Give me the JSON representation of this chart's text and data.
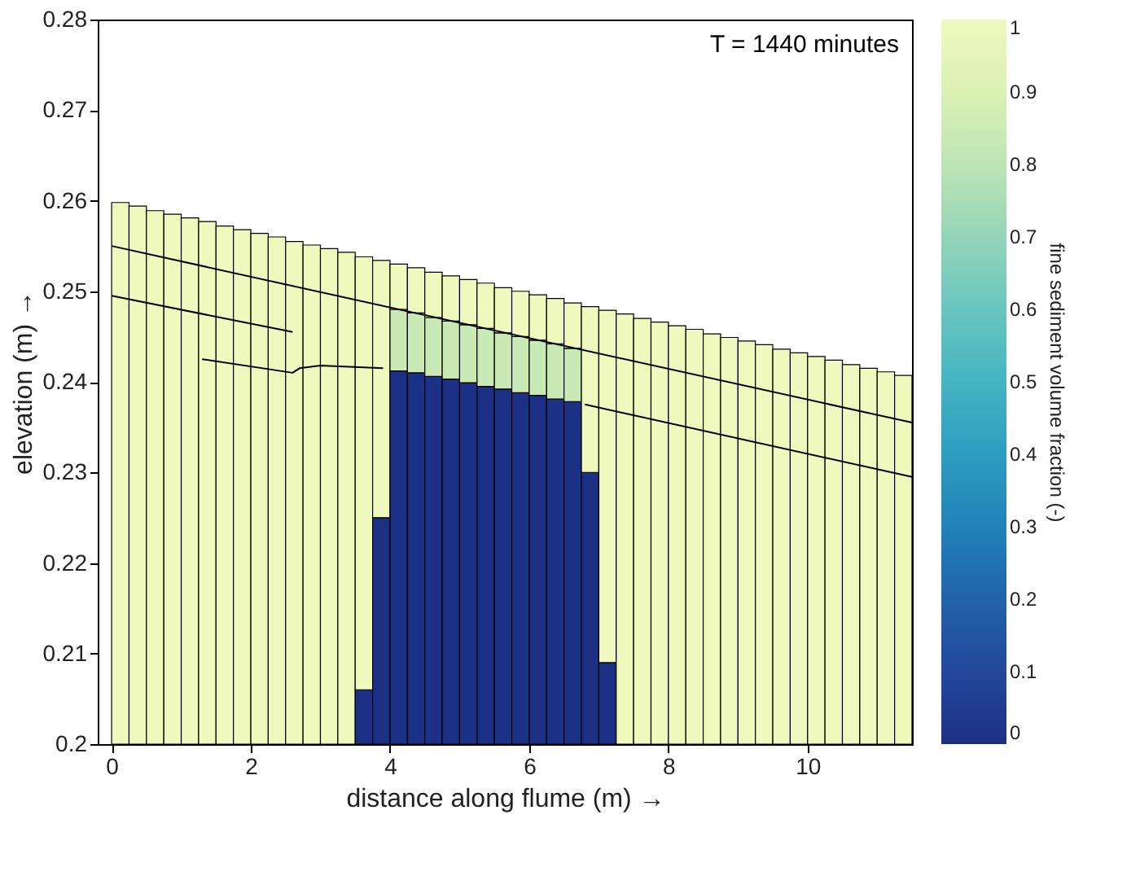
{
  "chart_data": {
    "type": "bar",
    "xlabel": "distance along flume (m) →",
    "ylabel": "elevation (m) →",
    "clabel": "fine sediment volume fraction (-)",
    "annotations": [
      "T = 1440 minutes"
    ],
    "x": [
      0.125,
      0.375,
      0.625,
      0.875,
      1.125,
      1.375,
      1.625,
      1.875,
      2.125,
      2.375,
      2.625,
      2.875,
      3.125,
      3.375,
      3.625,
      3.875,
      4.125,
      4.375,
      4.625,
      4.875,
      5.125,
      5.375,
      5.625,
      5.875,
      6.125,
      6.375,
      6.625,
      6.875,
      7.125,
      7.375,
      7.625,
      7.875,
      8.125,
      8.375,
      8.625,
      8.875,
      9.125,
      9.375,
      9.625,
      9.875,
      10.125,
      10.375,
      10.625,
      10.875,
      11.125,
      11.375
    ],
    "series": [
      {
        "base": [
          null,
          null,
          null,
          null,
          null,
          null,
          null,
          null,
          null,
          null,
          null,
          null,
          null,
          null,
          0.2,
          0.2,
          0.2,
          0.2,
          0.2,
          0.2,
          0.2,
          0.2,
          0.2,
          0.2,
          0.2,
          0.2,
          0.2,
          0.2,
          0.2,
          null,
          null,
          null,
          null,
          null,
          null,
          null,
          null,
          null,
          null,
          null,
          null,
          null,
          null,
          null,
          null,
          null
        ],
        "values": [
          null,
          null,
          null,
          null,
          null,
          null,
          null,
          null,
          null,
          null,
          null,
          null,
          null,
          null,
          0.006,
          0.025,
          0.0412,
          0.041,
          0.0406,
          0.0403,
          0.0399,
          0.0395,
          0.0392,
          0.0388,
          0.0385,
          0.0381,
          0.0378,
          0.03,
          0.009,
          null,
          null,
          null,
          null,
          null,
          null,
          null,
          null,
          null,
          null,
          null,
          null,
          null,
          null,
          null,
          null,
          null
        ],
        "cvalues": [
          null,
          null,
          null,
          null,
          null,
          null,
          null,
          null,
          null,
          null,
          null,
          null,
          null,
          null,
          0,
          0,
          0,
          0,
          0,
          0,
          0,
          0,
          0,
          0,
          0,
          0,
          0,
          0,
          0,
          null,
          null,
          null,
          null,
          null,
          null,
          null,
          null,
          null,
          null,
          null,
          null,
          null,
          null,
          null,
          null,
          null
        ]
      },
      {
        "base": [
          null,
          null,
          null,
          null,
          null,
          null,
          null,
          null,
          null,
          null,
          null,
          null,
          null,
          null,
          null,
          null,
          0.2412,
          0.241,
          0.2406,
          0.2403,
          0.2399,
          0.2395,
          0.2392,
          0.2388,
          0.2385,
          0.2381,
          0.2378,
          null,
          null,
          null,
          null,
          null,
          null,
          null,
          null,
          null,
          null,
          null,
          null,
          null,
          null,
          null,
          null,
          null,
          null,
          null
        ],
        "values": [
          null,
          null,
          null,
          null,
          null,
          null,
          null,
          null,
          null,
          null,
          null,
          null,
          null,
          null,
          null,
          null,
          0.0068,
          0.0066,
          0.0065,
          0.0064,
          0.0064,
          0.0064,
          0.0062,
          0.0062,
          0.0061,
          0.0061,
          0.0059,
          null,
          null,
          null,
          null,
          null,
          null,
          null,
          null,
          null,
          null,
          null,
          null,
          null,
          null,
          null,
          null,
          null,
          null,
          null
        ],
        "cvalues": [
          null,
          null,
          null,
          null,
          null,
          null,
          null,
          null,
          null,
          null,
          null,
          null,
          null,
          null,
          null,
          null,
          0.84,
          0.84,
          0.84,
          0.84,
          0.84,
          0.84,
          0.84,
          0.84,
          0.84,
          0.84,
          0.84,
          null,
          null,
          null,
          null,
          null,
          null,
          null,
          null,
          null,
          null,
          null,
          null,
          null,
          null,
          null,
          null,
          null,
          null,
          null
        ]
      },
      {
        "base": [
          0.2,
          0.2,
          0.2,
          0.2,
          0.2,
          0.2,
          0.2,
          0.2,
          0.2,
          0.2,
          0.2,
          0.2,
          0.2,
          0.2,
          0.206,
          0.225,
          0.248,
          0.2476,
          0.2471,
          0.2467,
          0.2463,
          0.2459,
          0.2454,
          0.245,
          0.2446,
          0.2442,
          0.2437,
          0.23,
          0.209,
          0.2,
          0.2,
          0.2,
          0.2,
          0.2,
          0.2,
          0.2,
          0.2,
          0.2,
          0.2,
          0.2,
          0.2,
          0.2,
          0.2,
          0.2,
          0.2,
          0.2
        ],
        "values": [
          0.0598,
          0.0594,
          0.0589,
          0.0585,
          0.0581,
          0.0577,
          0.0572,
          0.0568,
          0.0564,
          0.056,
          0.0555,
          0.0551,
          0.0547,
          0.0543,
          0.0478,
          0.0284,
          0.005,
          0.005,
          0.005,
          0.005,
          0.005,
          0.005,
          0.005,
          0.005,
          0.005,
          0.005,
          0.005,
          0.0183,
          0.0389,
          0.0475,
          0.047,
          0.0466,
          0.0462,
          0.0458,
          0.0453,
          0.0449,
          0.0445,
          0.0441,
          0.0436,
          0.0432,
          0.0428,
          0.0424,
          0.0419,
          0.0415,
          0.0411,
          0.0407
        ],
        "cvalues": [
          1,
          1,
          1,
          1,
          1,
          1,
          1,
          1,
          1,
          1,
          1,
          1,
          1,
          1,
          1,
          1,
          1,
          1,
          1,
          1,
          1,
          1,
          1,
          1,
          1,
          1,
          1,
          1,
          1,
          1,
          1,
          1,
          1,
          1,
          1,
          1,
          1,
          1,
          1,
          1,
          1,
          1,
          1,
          1,
          1,
          1
        ]
      },
      {
        "type": "line",
        "color": "#000000",
        "x": [
          0,
          11.5
        ],
        "values": [
          0.255,
          0.2355
        ]
      },
      {
        "type": "line",
        "color": "#000000",
        "x": [
          0,
          2.6
        ],
        "values": [
          0.2495,
          0.2455
        ]
      },
      {
        "type": "line",
        "color": "#000000",
        "x": [
          6.8,
          11.5
        ],
        "values": [
          0.2375,
          0.2295
        ]
      },
      {
        "type": "line",
        "color": "#000000",
        "x": [
          1.3,
          2.6,
          2.7,
          3.0,
          3.9
        ],
        "values": [
          0.2425,
          0.241,
          0.2415,
          0.2418,
          0.2415
        ]
      }
    ],
    "xlim": [
      -0.2,
      11.5
    ],
    "xticks": [
      0,
      2,
      4,
      6,
      8,
      10
    ],
    "ylim": [
      0.2,
      0.28
    ],
    "yticks": [
      0.2,
      0.21,
      0.22,
      0.23,
      0.24,
      0.25,
      0.26,
      0.27,
      0.28
    ],
    "clim": [
      0,
      1
    ],
    "cticks": [
      0,
      0.1,
      0.2,
      0.3,
      0.4,
      0.5,
      0.6,
      0.7,
      0.8,
      0.9,
      1
    ],
    "grid": false
  }
}
